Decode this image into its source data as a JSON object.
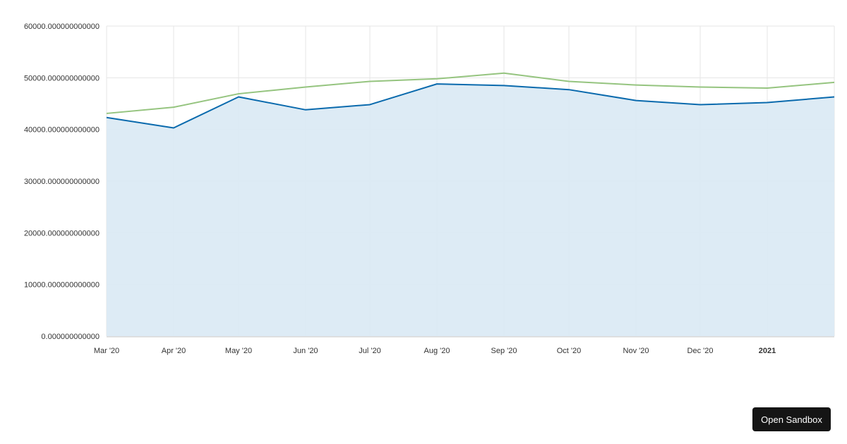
{
  "chart_data": {
    "type": "area",
    "x": [
      "Mar '20",
      "Apr '20",
      "May '20",
      "Jun '20",
      "Jul '20",
      "Aug '20",
      "Sep '20",
      "Oct '20",
      "Nov '20",
      "Dec '20",
      "2021",
      ""
    ],
    "x_tick_labels": [
      "Mar '20",
      "Apr '20",
      "May '20",
      "Jun '20",
      "Jul '20",
      "Aug '20",
      "Sep '20",
      "Oct '20",
      "Nov '20",
      "Dec '20",
      "2021"
    ],
    "y_tick_labels": [
      "0.000000000000",
      "10000.000000000000",
      "20000.000000000000",
      "30000.000000000000",
      "40000.000000000000",
      "50000.000000000000",
      "60000.000000000000"
    ],
    "ylim": [
      0,
      60000
    ],
    "grid": true,
    "series": [
      {
        "type": "area",
        "color": "#0a6aad",
        "fill": "#dbeaf4",
        "values": [
          42300,
          40300,
          46300,
          43800,
          44800,
          48800,
          48500,
          47700,
          45600,
          44800,
          45200,
          46300
        ]
      },
      {
        "type": "line",
        "color": "#95c47f",
        "values": [
          43100,
          44300,
          46900,
          48200,
          49300,
          49800,
          50900,
          49300,
          48600,
          48200,
          48000,
          49100
        ]
      }
    ]
  },
  "sandbox_button": {
    "label": "Open Sandbox"
  }
}
